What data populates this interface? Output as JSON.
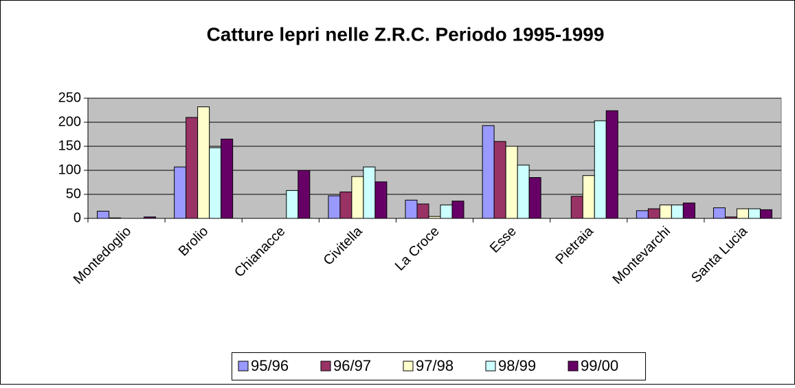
{
  "chart_data": {
    "type": "bar",
    "title": "Catture lepri nelle Z.R.C. Periodo 1995-1999",
    "categories": [
      "Montedoglio",
      "Brolio",
      "Chianacce",
      "Civitella",
      "La Croce",
      "Esse",
      "Pietraia",
      "Montevarchi",
      "Santa Lucia"
    ],
    "series": [
      {
        "name": "95/96",
        "color": "#9999ff",
        "values": [
          15,
          107,
          0,
          47,
          38,
          193,
          0,
          16,
          22
        ]
      },
      {
        "name": "96/97",
        "color": "#993366",
        "values": [
          1,
          210,
          0,
          55,
          30,
          160,
          46,
          20,
          3
        ]
      },
      {
        "name": "97/98",
        "color": "#ffffcc",
        "values": [
          0,
          232,
          0,
          87,
          4,
          150,
          89,
          28,
          20
        ]
      },
      {
        "name": "98/99",
        "color": "#ccffff",
        "values": [
          0,
          147,
          58,
          107,
          28,
          111,
          203,
          28,
          20
        ]
      },
      {
        "name": "99/00",
        "color": "#660066",
        "values": [
          3,
          165,
          100,
          76,
          36,
          85,
          224,
          32,
          18
        ]
      }
    ],
    "ylim": [
      0,
      250
    ],
    "yticks": [
      0,
      50,
      100,
      150,
      200,
      250
    ],
    "grid": true,
    "legend": "bottom"
  }
}
